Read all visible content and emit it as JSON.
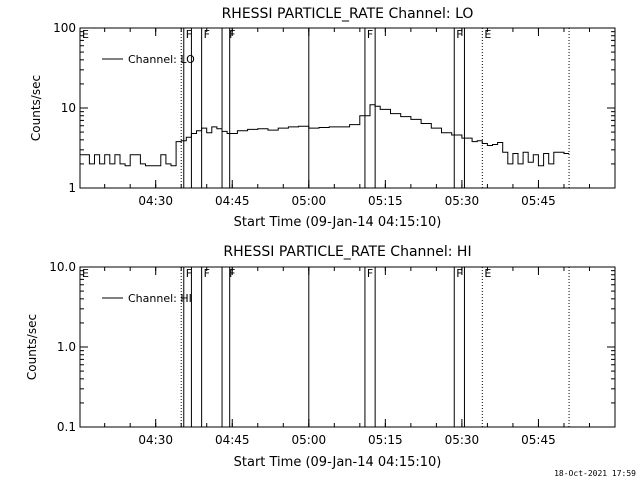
{
  "footer_stamp": "18-Oct-2021 17:59",
  "chart_data": [
    {
      "type": "line",
      "title": "RHESSI PARTICLE_RATE Channel: LO",
      "xlabel": "Start Time (09-Jan-14 04:15:10)",
      "ylabel": "Counts/sec",
      "yscale": "log",
      "xlim": [
        "04:15:10",
        "06:00:00"
      ],
      "ylim": [
        1,
        100
      ],
      "x_ticks": [
        "04:30",
        "04:45",
        "05:00",
        "05:15",
        "05:30",
        "05:45"
      ],
      "y_ticks": [
        "1",
        "10",
        "100"
      ],
      "legend": "top-left",
      "series": [
        {
          "name": "Channel: LO",
          "x": [
            "04:15:10",
            "04:17:00",
            "04:18:00",
            "04:19:00",
            "04:20:00",
            "04:21:00",
            "04:22:00",
            "04:23:00",
            "04:24:00",
            "04:25:00",
            "04:26:00",
            "04:27:00",
            "04:28:00",
            "04:29:00",
            "04:30:00",
            "04:31:00",
            "04:32:00",
            "04:33:00",
            "04:34:00",
            "04:35:00",
            "04:36:00",
            "04:37:00",
            "04:38:00",
            "04:39:00",
            "04:40:00",
            "04:41:00",
            "04:42:00",
            "04:43:00",
            "04:44:00",
            "04:46:00",
            "04:48:00",
            "04:50:00",
            "04:52:00",
            "04:54:00",
            "04:56:00",
            "04:58:00",
            "05:00:00",
            "05:02:00",
            "05:04:00",
            "05:06:00",
            "05:08:00",
            "05:10:00",
            "05:12:00",
            "05:13:00",
            "05:14:00",
            "05:16:00",
            "05:18:00",
            "05:20:00",
            "05:22:00",
            "05:24:00",
            "05:26:00",
            "05:28:00",
            "05:30:00",
            "05:32:00",
            "05:33:00",
            "05:34:00",
            "05:35:00",
            "05:36:00",
            "05:37:00",
            "05:38:00",
            "05:39:00",
            "05:40:00",
            "05:41:00",
            "05:42:00",
            "05:43:00",
            "05:44:00",
            "05:45:00",
            "05:46:00",
            "05:47:00",
            "05:48:00",
            "05:50:00",
            "05:51:00"
          ],
          "values": [
            2.6,
            2.0,
            2.6,
            2.0,
            2.6,
            2.0,
            2.6,
            2.0,
            1.9,
            2.6,
            2.6,
            2.0,
            1.9,
            1.9,
            1.9,
            2.6,
            2.0,
            1.9,
            3.8,
            3.9,
            4.3,
            4.8,
            5.2,
            5.6,
            4.9,
            5.8,
            5.5,
            5.1,
            4.8,
            5.2,
            5.4,
            5.5,
            5.3,
            5.6,
            5.8,
            5.9,
            5.6,
            5.7,
            5.8,
            5.8,
            6.2,
            8.0,
            11.0,
            10.5,
            9.6,
            8.5,
            7.8,
            7.2,
            6.4,
            5.6,
            4.9,
            4.6,
            4.2,
            3.8,
            3.9,
            3.6,
            3.4,
            3.5,
            3.7,
            2.8,
            2.0,
            2.7,
            2.0,
            2.8,
            2.1,
            2.6,
            1.9,
            2.7,
            2.0,
            2.8,
            2.7,
            2.7
          ]
        }
      ],
      "annotations": [
        {
          "label": "E",
          "x": "04:15:10"
        },
        {
          "label": "F",
          "x": "04:35:30"
        },
        {
          "label": "F",
          "x": "04:39:00"
        },
        {
          "label": "F",
          "x": "04:44:00"
        },
        {
          "label": "F",
          "x": "05:11:00"
        },
        {
          "label": "F",
          "x": "05:28:30"
        },
        {
          "label": "E",
          "x": "05:34:00"
        }
      ]
    },
    {
      "type": "line",
      "title": "RHESSI PARTICLE_RATE Channel: HI",
      "xlabel": "Start Time (09-Jan-14 04:15:10)",
      "ylabel": "Counts/sec",
      "yscale": "log",
      "xlim": [
        "04:15:10",
        "06:00:00"
      ],
      "ylim": [
        0.1,
        10.0
      ],
      "x_ticks": [
        "04:30",
        "04:45",
        "05:00",
        "05:15",
        "05:30",
        "05:45"
      ],
      "y_ticks": [
        "0.1",
        "1.0",
        "10.0"
      ],
      "legend": "top-left",
      "series": [
        {
          "name": "Channel: HI",
          "x": [],
          "values": []
        }
      ],
      "annotations": [
        {
          "label": "E",
          "x": "04:15:10"
        },
        {
          "label": "F",
          "x": "04:35:30"
        },
        {
          "label": "F",
          "x": "04:39:00"
        },
        {
          "label": "F",
          "x": "04:44:00"
        },
        {
          "label": "F",
          "x": "05:11:00"
        },
        {
          "label": "F",
          "x": "05:28:30"
        },
        {
          "label": "E",
          "x": "05:34:00"
        }
      ]
    }
  ]
}
